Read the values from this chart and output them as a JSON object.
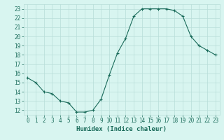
{
  "x": [
    0,
    1,
    2,
    3,
    4,
    5,
    6,
    7,
    8,
    9,
    10,
    11,
    12,
    13,
    14,
    15,
    16,
    17,
    18,
    19,
    20,
    21,
    22,
    23
  ],
  "y": [
    15.5,
    15.0,
    14.0,
    13.8,
    13.0,
    12.8,
    11.8,
    11.8,
    12.0,
    13.2,
    15.8,
    18.2,
    19.8,
    22.2,
    23.0,
    23.0,
    23.0,
    23.0,
    22.8,
    22.2,
    20.0,
    19.0,
    18.5,
    18.0
  ],
  "line_color": "#1a6b5a",
  "marker": "+",
  "bg_color": "#d8f5f0",
  "grid_color": "#b8ddd8",
  "xlabel": "Humidex (Indice chaleur)",
  "ylim": [
    11.5,
    23.5
  ],
  "xlim": [
    -0.5,
    23.5
  ],
  "yticks": [
    12,
    13,
    14,
    15,
    16,
    17,
    18,
    19,
    20,
    21,
    22,
    23
  ],
  "xticks": [
    0,
    1,
    2,
    3,
    4,
    5,
    6,
    7,
    8,
    9,
    10,
    11,
    12,
    13,
    14,
    15,
    16,
    17,
    18,
    19,
    20,
    21,
    22,
    23
  ],
  "tick_fontsize": 5.5,
  "xlabel_fontsize": 6.5,
  "label_color": "#1a6b5a"
}
